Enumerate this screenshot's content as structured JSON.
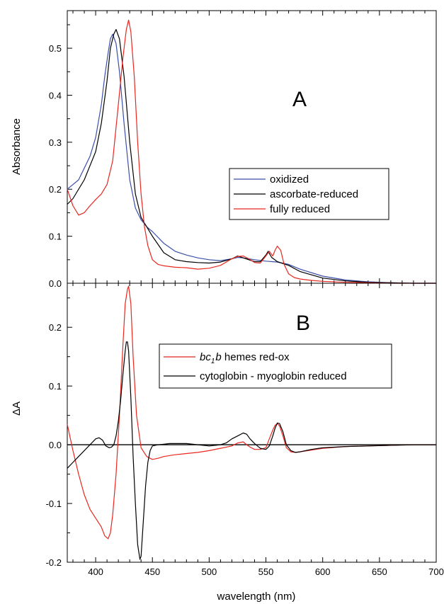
{
  "chart_data": [
    {
      "type": "line",
      "panel_label": "A",
      "ylabel": "Absorbance",
      "xlabel": "",
      "xlim": [
        375,
        700
      ],
      "ylim": [
        0,
        0.58
      ],
      "xticks": [
        400,
        450,
        500,
        550,
        600,
        650,
        700
      ],
      "yticks": [
        0.0,
        0.1,
        0.2,
        0.3,
        0.4,
        0.5
      ],
      "ytick_labels": [
        "0.0",
        "0.1",
        "0.2",
        "0.3",
        "0.4",
        "0.5"
      ],
      "legend_position": "center-right",
      "series": [
        {
          "name": "oxidized",
          "color": "#3b4fa8",
          "x": [
            375,
            385,
            395,
            400,
            405,
            408,
            411,
            413,
            415,
            418,
            421,
            425,
            430,
            435,
            440,
            445,
            450,
            460,
            470,
            480,
            490,
            500,
            510,
            520,
            525,
            530,
            540,
            550,
            560,
            570,
            580,
            600,
            620,
            640,
            660,
            680,
            700
          ],
          "y": [
            0.2,
            0.22,
            0.27,
            0.31,
            0.38,
            0.44,
            0.49,
            0.52,
            0.53,
            0.51,
            0.45,
            0.34,
            0.22,
            0.16,
            0.135,
            0.12,
            0.11,
            0.085,
            0.068,
            0.06,
            0.054,
            0.05,
            0.048,
            0.052,
            0.055,
            0.054,
            0.05,
            0.047,
            0.045,
            0.04,
            0.03,
            0.015,
            0.007,
            0.003,
            0.001,
            0.0,
            0.0
          ]
        },
        {
          "name": "ascorbate-reduced",
          "color": "#000000",
          "x": [
            375,
            380,
            390,
            400,
            405,
            410,
            413,
            416,
            418,
            421,
            425,
            430,
            435,
            440,
            445,
            450,
            460,
            470,
            480,
            490,
            500,
            510,
            520,
            525,
            530,
            540,
            545,
            550,
            552,
            555,
            560,
            570,
            580,
            600,
            620,
            640,
            660,
            680,
            700
          ],
          "y": [
            0.168,
            0.18,
            0.22,
            0.28,
            0.34,
            0.43,
            0.5,
            0.53,
            0.54,
            0.52,
            0.44,
            0.3,
            0.19,
            0.14,
            0.12,
            0.1,
            0.065,
            0.05,
            0.046,
            0.044,
            0.043,
            0.045,
            0.052,
            0.058,
            0.054,
            0.046,
            0.046,
            0.06,
            0.068,
            0.055,
            0.046,
            0.038,
            0.025,
            0.011,
            0.005,
            0.002,
            0.001,
            0.0,
            0.0
          ]
        },
        {
          "name": "fully reduced",
          "color": "#e8271f",
          "x": [
            375,
            380,
            385,
            390,
            395,
            400,
            405,
            410,
            415,
            420,
            424,
            427,
            429,
            431,
            434,
            437,
            440,
            443,
            446,
            450,
            455,
            460,
            470,
            480,
            490,
            500,
            510,
            520,
            525,
            530,
            535,
            540,
            545,
            550,
            553,
            556,
            558,
            560,
            563,
            566,
            570,
            575,
            580,
            590,
            600,
            620,
            640,
            660,
            680,
            700
          ],
          "y": [
            0.2,
            0.165,
            0.145,
            0.15,
            0.165,
            0.178,
            0.19,
            0.21,
            0.26,
            0.38,
            0.48,
            0.54,
            0.56,
            0.535,
            0.44,
            0.3,
            0.19,
            0.12,
            0.08,
            0.05,
            0.04,
            0.037,
            0.034,
            0.033,
            0.03,
            0.032,
            0.038,
            0.052,
            0.057,
            0.058,
            0.052,
            0.044,
            0.043,
            0.058,
            0.068,
            0.058,
            0.07,
            0.079,
            0.07,
            0.04,
            0.02,
            0.012,
            0.009,
            0.006,
            0.004,
            0.002,
            0.001,
            0.0,
            0.0,
            0.0
          ]
        }
      ]
    },
    {
      "type": "line",
      "panel_label": "B",
      "ylabel": "ΔA",
      "xlabel": "wavelength (nm)",
      "xlim": [
        375,
        700
      ],
      "ylim": [
        -0.2,
        0.275
      ],
      "xticks": [
        400,
        450,
        500,
        550,
        600,
        650,
        700
      ],
      "xtick_labels": [
        "400",
        "450",
        "500",
        "550",
        "600",
        "650",
        "700"
      ],
      "yticks": [
        -0.2,
        -0.1,
        0.0,
        0.1,
        0.2
      ],
      "ytick_labels": [
        "-0.2",
        "-0.1",
        "0.0",
        "0.1",
        "0.2"
      ],
      "legend_position": "top-right",
      "series": [
        {
          "name": "bc1b hemes red-ox",
          "name_parts": {
            "italic": "bc",
            "sub": "1",
            "italic2": "b",
            "rest": " hemes red-ox"
          },
          "color": "#e8271f",
          "x": [
            375,
            380,
            385,
            390,
            395,
            400,
            405,
            408,
            411,
            413,
            415,
            418,
            421,
            424,
            426,
            428,
            429,
            431,
            433,
            436,
            440,
            445,
            450,
            455,
            460,
            470,
            480,
            490,
            500,
            510,
            520,
            525,
            530,
            533,
            536,
            540,
            545,
            550,
            553,
            556,
            558,
            560,
            562,
            565,
            568,
            572,
            576,
            580,
            590,
            600,
            620,
            640,
            660,
            680,
            700
          ],
          "y": [
            0.035,
            -0.01,
            -0.05,
            -0.085,
            -0.11,
            -0.125,
            -0.14,
            -0.155,
            -0.16,
            -0.15,
            -0.12,
            -0.05,
            0.05,
            0.17,
            0.24,
            0.265,
            0.27,
            0.24,
            0.15,
            0.05,
            -0.005,
            -0.02,
            -0.025,
            -0.023,
            -0.02,
            -0.017,
            -0.015,
            -0.013,
            -0.01,
            -0.006,
            -0.002,
            0.003,
            0.005,
            0.0,
            -0.004,
            -0.008,
            -0.008,
            -0.005,
            0.01,
            0.025,
            0.033,
            0.036,
            0.032,
            0.015,
            -0.005,
            -0.012,
            -0.013,
            -0.012,
            -0.009,
            -0.006,
            -0.003,
            -0.002,
            -0.001,
            0.0,
            0.0
          ]
        },
        {
          "name": "cytoglobin - myoglobin reduced",
          "color": "#000000",
          "x": [
            375,
            380,
            385,
            390,
            395,
            400,
            403,
            406,
            409,
            412,
            414,
            416,
            418,
            420,
            422,
            424,
            426,
            427,
            428,
            429,
            431,
            433,
            435,
            437,
            439,
            440,
            442,
            444,
            446,
            448,
            450,
            455,
            460,
            465,
            470,
            475,
            480,
            490,
            500,
            510,
            515,
            520,
            525,
            530,
            533,
            536,
            540,
            545,
            550,
            553,
            556,
            558,
            560,
            562,
            565,
            568,
            572,
            576,
            580,
            590,
            600,
            620,
            640,
            660,
            680,
            700
          ],
          "y": [
            -0.04,
            -0.03,
            -0.02,
            -0.01,
            0.0,
            0.01,
            0.012,
            0.008,
            -0.002,
            -0.005,
            -0.004,
            0.0,
            0.015,
            0.04,
            0.075,
            0.12,
            0.16,
            0.175,
            0.175,
            0.16,
            0.08,
            -0.02,
            -0.1,
            -0.17,
            -0.195,
            -0.19,
            -0.13,
            -0.07,
            -0.03,
            -0.01,
            -0.002,
            0.0,
            0.001,
            0.002,
            0.002,
            0.002,
            0.002,
            0.0,
            -0.002,
            0.0,
            0.003,
            0.01,
            0.015,
            0.02,
            0.018,
            0.01,
            0.002,
            -0.006,
            -0.008,
            -0.002,
            0.015,
            0.028,
            0.037,
            0.036,
            0.022,
            0.0,
            -0.01,
            -0.013,
            -0.012,
            -0.008,
            -0.005,
            -0.003,
            -0.002,
            -0.001,
            0.0,
            0.0
          ]
        }
      ]
    }
  ]
}
